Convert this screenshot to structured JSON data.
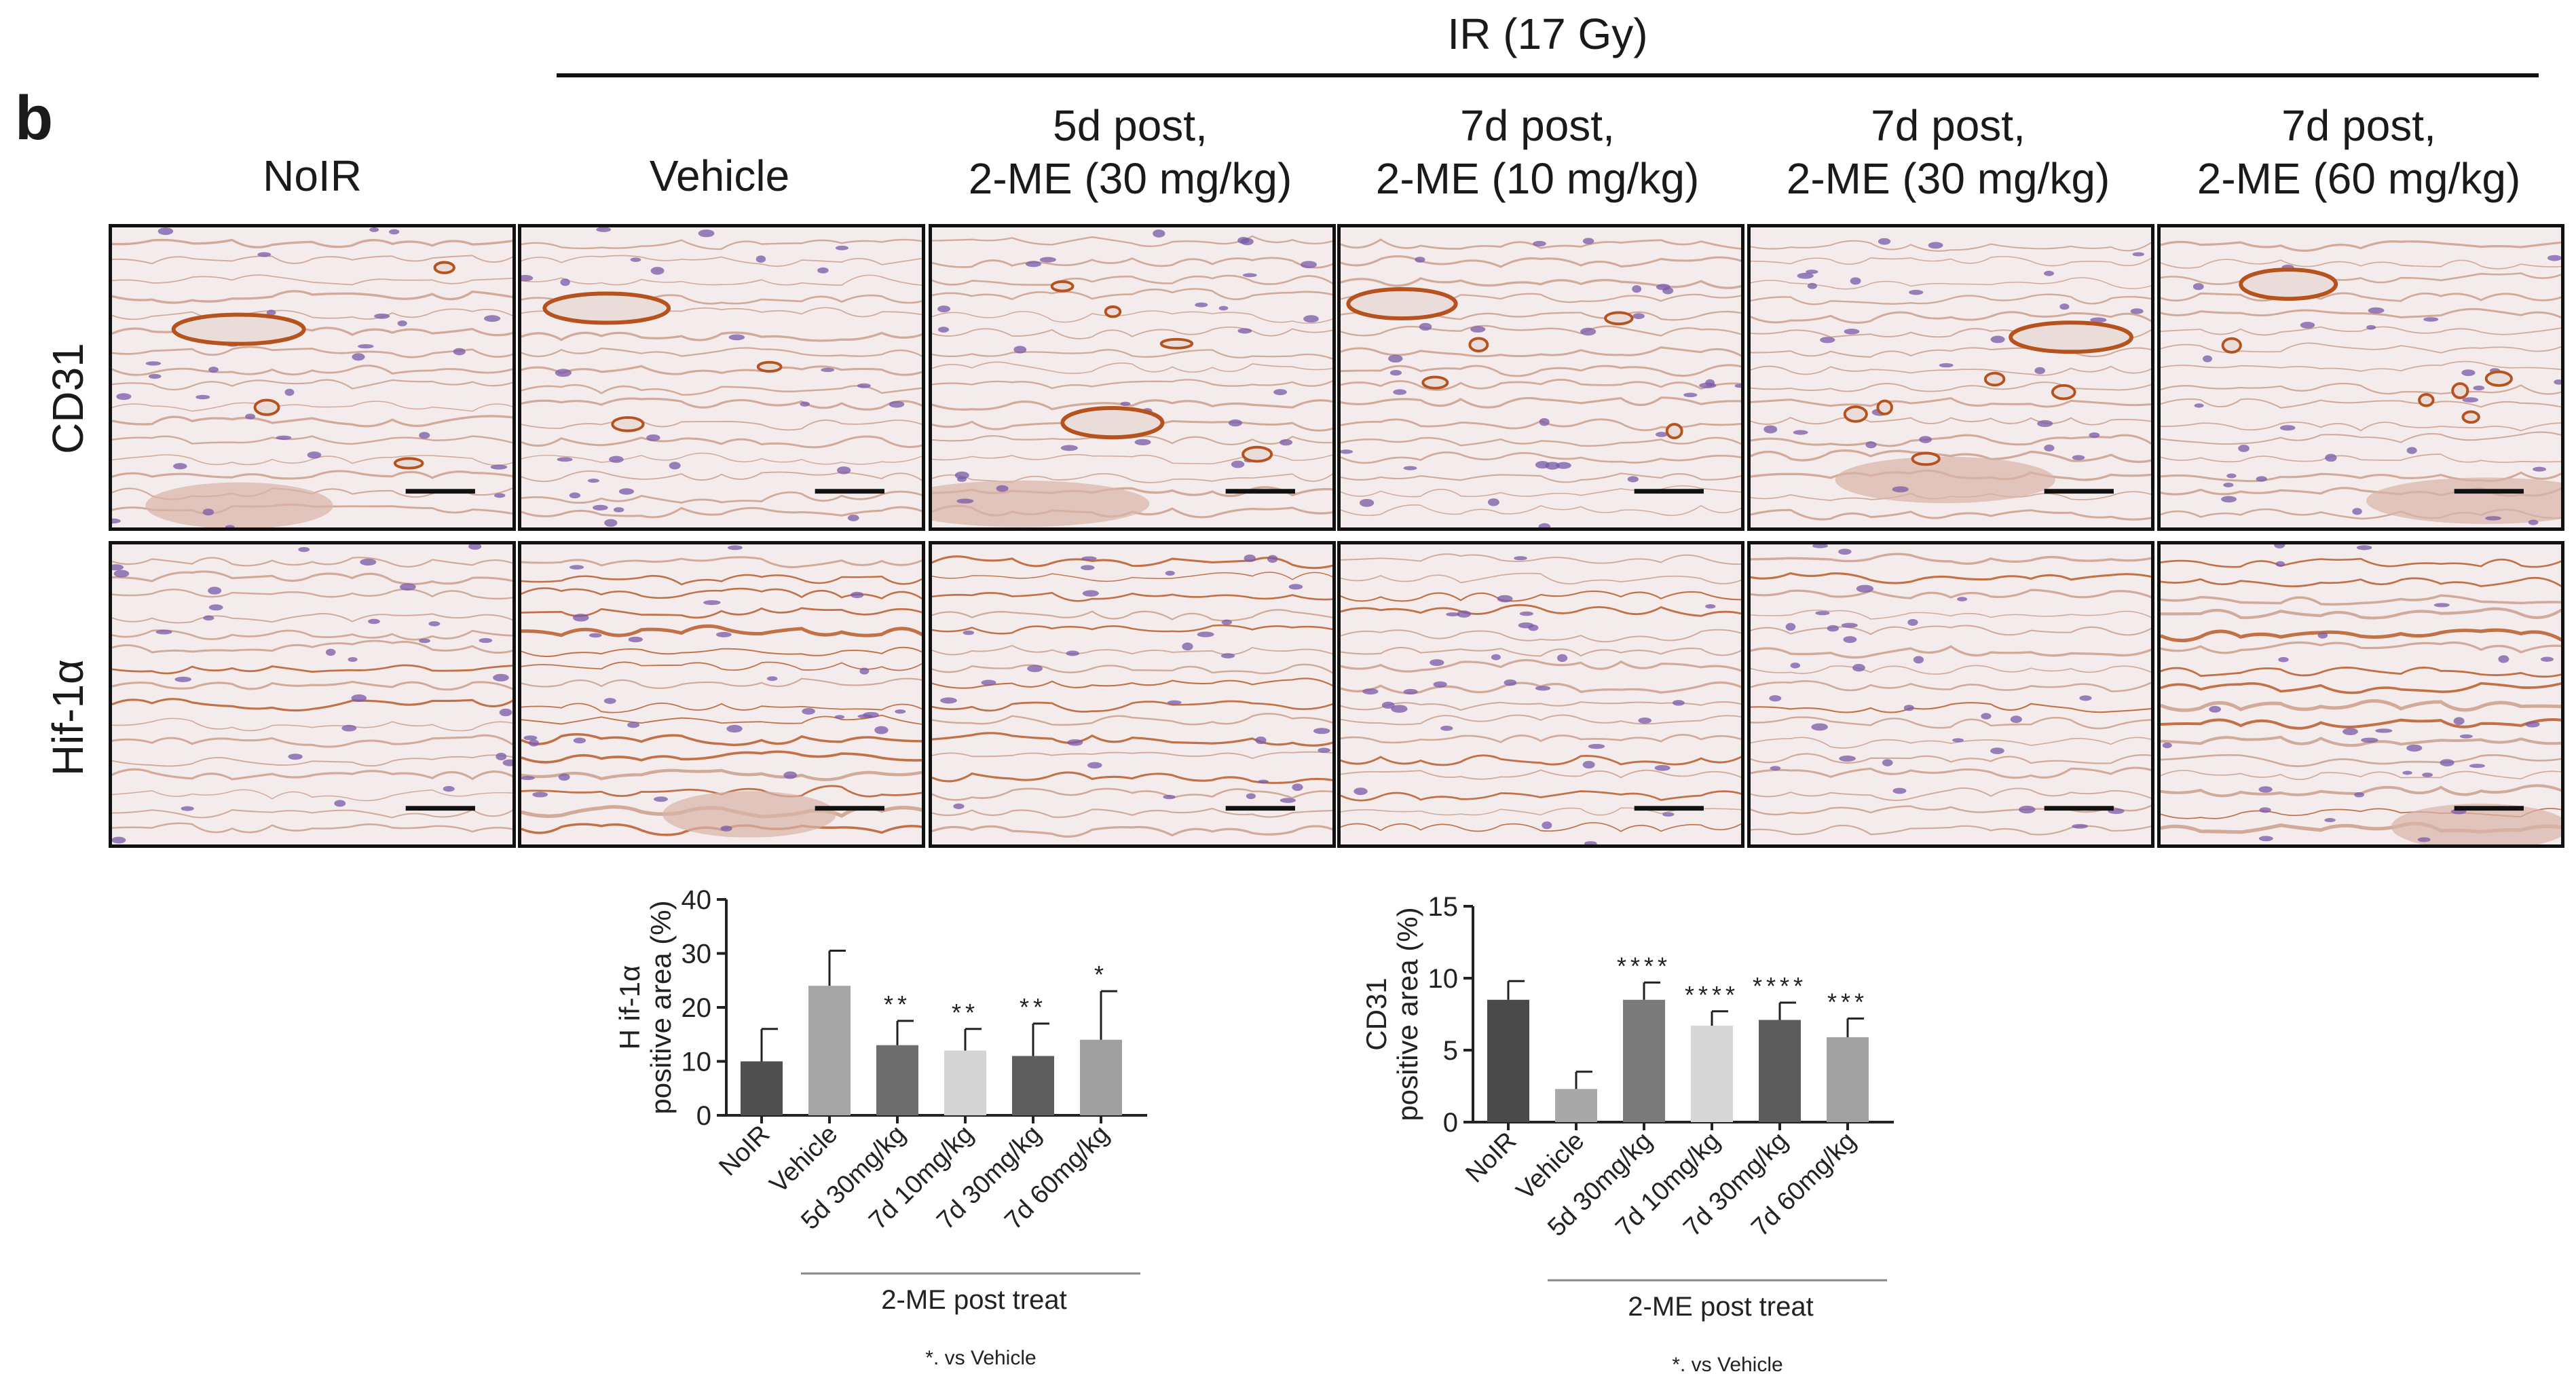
{
  "panel_label": "b",
  "group_label": "IR (17 Gy)",
  "columns": [
    {
      "line1": "NoIR",
      "line2": ""
    },
    {
      "line1": "Vehicle",
      "line2": ""
    },
    {
      "line1": "5d post,",
      "line2": "2-ME (30 mg/kg)"
    },
    {
      "line1": "7d post,",
      "line2": "2-ME (10 mg/kg)"
    },
    {
      "line1": "7d post,",
      "line2": "2-ME (30 mg/kg)"
    },
    {
      "line1": "7d post,",
      "line2": "2-ME (60 mg/kg)"
    }
  ],
  "rows": [
    {
      "label": "CD31"
    },
    {
      "label": "Hif-1α"
    }
  ],
  "stain_colors": {
    "background": "#f4ecec",
    "hematoxylin": "#7a5aa8",
    "dab": "#b5521e",
    "fiber": "#c99a86",
    "muscle": "#d9b3a8"
  },
  "chart_data": [
    {
      "type": "bar",
      "ylabel_line1": "H if-1α",
      "ylabel_line2": "positive area (%)",
      "categories": [
        "NoIR",
        "Vehicle",
        "5d 30mg/kg",
        "7d 10mg/kg",
        "7d 30mg/kg",
        "7d 60mg/kg"
      ],
      "values": [
        10,
        24,
        13,
        12,
        11,
        14
      ],
      "errors": [
        6,
        6.5,
        4.5,
        4,
        6,
        9
      ],
      "significance": [
        "",
        "",
        "**",
        "**",
        "**",
        "*"
      ],
      "bar_colors": [
        "#505050",
        "#a6a6a6",
        "#6e6e6e",
        "#d4d4d4",
        "#5f5f5f",
        "#a0a0a0"
      ],
      "ylim": [
        0,
        40
      ],
      "yticks": [
        0,
        10,
        20,
        30,
        40
      ],
      "group_label": "2-ME post treat",
      "footnote": "*. vs Vehicle"
    },
    {
      "type": "bar",
      "ylabel_line1": "CD31",
      "ylabel_line2": "positive area (%)",
      "categories": [
        "NoIR",
        "Vehicle",
        "5d 30mg/kg",
        "7d 10mg/kg",
        "7d 30mg/kg",
        "7d 60mg/kg"
      ],
      "values": [
        8.5,
        2.3,
        8.5,
        6.7,
        7.1,
        5.9
      ],
      "errors": [
        1.3,
        1.2,
        1.2,
        1.0,
        1.2,
        1.3
      ],
      "significance": [
        "",
        "",
        "****",
        "****",
        "****",
        "***"
      ],
      "bar_colors": [
        "#4a4a4a",
        "#a8a8a8",
        "#7a7a7a",
        "#d6d6d6",
        "#5c5c5c",
        "#a2a2a2"
      ],
      "ylim": [
        0,
        15
      ],
      "yticks": [
        0,
        5,
        10,
        15
      ],
      "group_label": "2-ME post treat",
      "footnote": "*. vs Vehicle"
    }
  ]
}
